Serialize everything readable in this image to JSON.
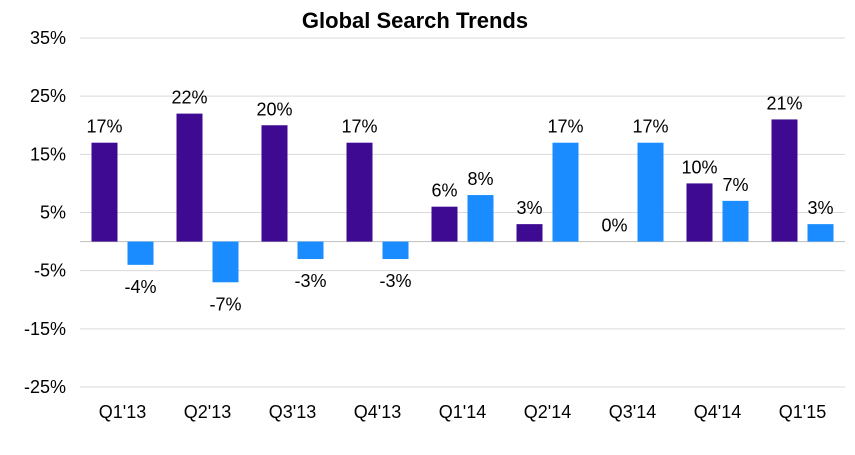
{
  "chart_data": {
    "type": "bar",
    "title": "Global  Search Trends",
    "xlabel": "",
    "ylabel": "",
    "categories": [
      "Q1'13",
      "Q2'13",
      "Q3'13",
      "Q4'13",
      "Q1'14",
      "Q2'14",
      "Q3'14",
      "Q4'14",
      "Q1'15"
    ],
    "ylim": [
      -25,
      35
    ],
    "yticks": [
      -25,
      -15,
      -5,
      5,
      15,
      25,
      35
    ],
    "ytick_labels": [
      "-25%",
      "-15%",
      "-5%",
      "5%",
      "15%",
      "25%",
      "35%"
    ],
    "grid": true,
    "legend": "none",
    "series": [
      {
        "color": "#3d0a91",
        "values": [
          17,
          22,
          20,
          17,
          6,
          3,
          0,
          10,
          21
        ],
        "labels": [
          "17%",
          "22%",
          "20%",
          "17%",
          "6%",
          "3%",
          "0%",
          "10%",
          "21%"
        ]
      },
      {
        "color": "#1a8cff",
        "values": [
          -4,
          -7,
          -3,
          -3,
          8,
          17,
          17,
          7,
          3
        ],
        "labels": [
          "-4%",
          "-7%",
          "-3%",
          "-3%",
          "8%",
          "17%",
          "17%",
          "7%",
          "3%"
        ]
      }
    ]
  }
}
